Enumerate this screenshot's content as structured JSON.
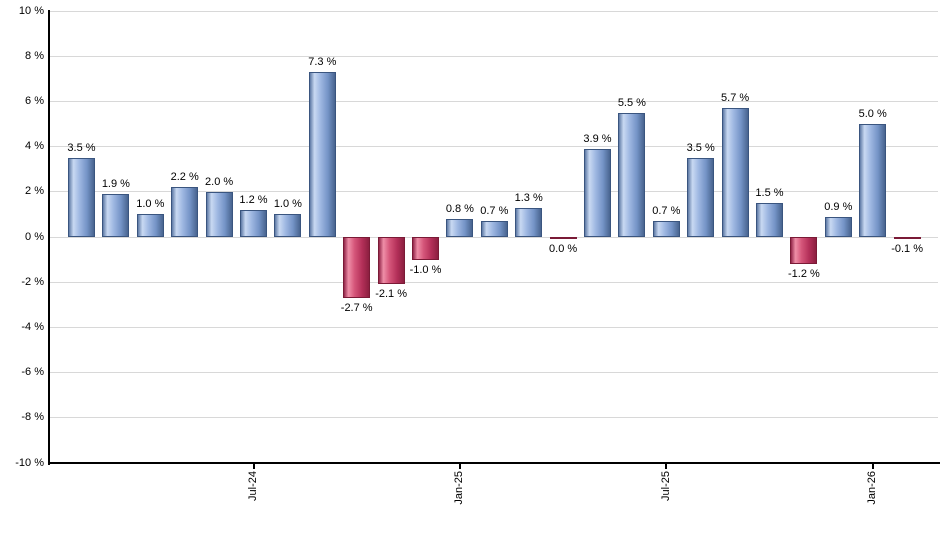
{
  "chart_data": {
    "type": "bar",
    "title": "",
    "xlabel": "",
    "ylabel": "",
    "ylim": [
      -10,
      10
    ],
    "ytick_step": 2,
    "grid": "horizontal",
    "legend": "none",
    "y_tick_labels": [
      "10 %",
      "8 %",
      "6 %",
      "4 %",
      "2 %",
      "0 %",
      "-2 %",
      "-4 %",
      "-6 %",
      "-8 %",
      "-10 %"
    ],
    "x_tick_labels": [
      {
        "label": "Jul-24",
        "bar_index": 5
      },
      {
        "label": "Jan-25",
        "bar_index": 11
      },
      {
        "label": "Jul-25",
        "bar_index": 17
      },
      {
        "label": "Jan-26",
        "bar_index": 23
      }
    ],
    "bars": [
      {
        "value": 3.5,
        "label": "3.5 %",
        "color": "positive"
      },
      {
        "value": 1.9,
        "label": "1.9 %",
        "color": "positive"
      },
      {
        "value": 1.0,
        "label": "1.0 %",
        "color": "positive"
      },
      {
        "value": 2.2,
        "label": "2.2 %",
        "color": "positive"
      },
      {
        "value": 2.0,
        "label": "2.0 %",
        "color": "positive"
      },
      {
        "value": 1.2,
        "label": "1.2 %",
        "color": "positive"
      },
      {
        "value": 1.0,
        "label": "1.0 %",
        "color": "positive"
      },
      {
        "value": 7.3,
        "label": "7.3 %",
        "color": "positive"
      },
      {
        "value": -2.7,
        "label": "-2.7 %",
        "color": "negative"
      },
      {
        "value": -2.1,
        "label": "-2.1 %",
        "color": "negative"
      },
      {
        "value": -1.0,
        "label": "-1.0 %",
        "color": "negative"
      },
      {
        "value": 0.8,
        "label": "0.8 %",
        "color": "positive"
      },
      {
        "value": 0.7,
        "label": "0.7 %",
        "color": "positive"
      },
      {
        "value": 1.3,
        "label": "1.3 %",
        "color": "positive"
      },
      {
        "value": 0.0,
        "label": "0.0 %",
        "color": "negative"
      },
      {
        "value": 3.9,
        "label": "3.9 %",
        "color": "positive"
      },
      {
        "value": 5.5,
        "label": "5.5 %",
        "color": "positive"
      },
      {
        "value": 0.7,
        "label": "0.7 %",
        "color": "positive"
      },
      {
        "value": 3.5,
        "label": "3.5 %",
        "color": "positive"
      },
      {
        "value": 5.7,
        "label": "5.7 %",
        "color": "positive"
      },
      {
        "value": 1.5,
        "label": "1.5 %",
        "color": "positive"
      },
      {
        "value": -1.2,
        "label": "-1.2 %",
        "color": "negative"
      },
      {
        "value": 0.9,
        "label": "0.9 %",
        "color": "positive"
      },
      {
        "value": 5.0,
        "label": "5.0 %",
        "color": "positive"
      },
      {
        "value": -0.1,
        "label": "-0.1 %",
        "color": "negative"
      }
    ]
  },
  "colors": {
    "positive_gradient": [
      "#5e7aa6",
      "#c9d9f2",
      "#9fb8e2",
      "#7493c6",
      "#48648f"
    ],
    "negative_gradient": [
      "#93264a",
      "#ef8fa8",
      "#d5567a",
      "#b43059",
      "#8c1f40"
    ],
    "positive_border": "#3a557f",
    "negative_border": "#7a1a36",
    "gridline": "#d8d8d8",
    "axis": "#000000",
    "label_text": "#000000",
    "background": "#ffffff"
  }
}
